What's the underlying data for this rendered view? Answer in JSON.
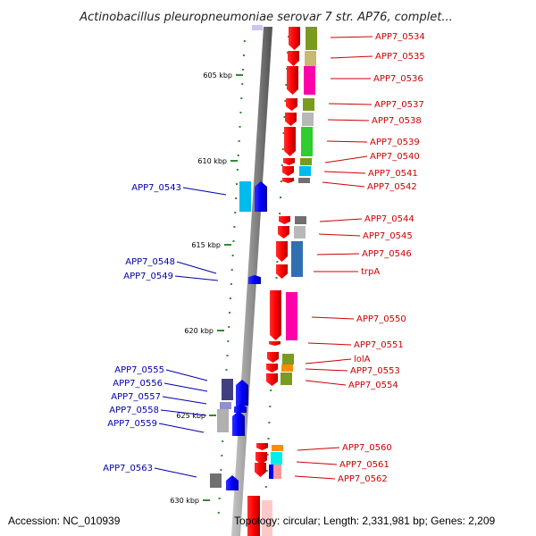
{
  "title": "Actinobacillus pleuropneumoniae serovar 7 str. AP76, complet...",
  "footer": {
    "accession": "Accession: NC_010939",
    "topology": "Topology: circular; Length: 2,331,981 bp; Genes: 2,209"
  },
  "colors": {
    "forward_label": "#cc0000",
    "reverse_label": "#0000aa",
    "tick": "#2e8b2e",
    "axis": "#808080"
  },
  "ruler": [
    {
      "label": "605 kbp"
    },
    {
      "label": "610 kbp"
    },
    {
      "label": "615 kbp"
    },
    {
      "label": "620 kbp"
    },
    {
      "label": "625 kbp"
    },
    {
      "label": "630 kbp"
    }
  ],
  "forward_genes": [
    {
      "label": "APP7_0534"
    },
    {
      "label": "APP7_0535"
    },
    {
      "label": "APP7_0536"
    },
    {
      "label": "APP7_0537"
    },
    {
      "label": "APP7_0538"
    },
    {
      "label": "APP7_0539"
    },
    {
      "label": "APP7_0540"
    },
    {
      "label": "APP7_0541"
    },
    {
      "label": "APP7_0542"
    },
    {
      "label": "APP7_0544"
    },
    {
      "label": "APP7_0545"
    },
    {
      "label": "APP7_0546"
    },
    {
      "label": "trpA"
    },
    {
      "label": "APP7_0550"
    },
    {
      "label": "APP7_0551"
    },
    {
      "label": "lolA"
    },
    {
      "label": "APP7_0553"
    },
    {
      "label": "APP7_0554"
    },
    {
      "label": "APP7_0560"
    },
    {
      "label": "APP7_0561"
    },
    {
      "label": "APP7_0562"
    }
  ],
  "reverse_genes": [
    {
      "label": "APP7_0543"
    },
    {
      "label": "APP7_0548"
    },
    {
      "label": "APP7_0549"
    },
    {
      "label": "APP7_0555"
    },
    {
      "label": "APP7_0556"
    },
    {
      "label": "APP7_0557"
    },
    {
      "label": "APP7_0558"
    },
    {
      "label": "APP7_0559"
    },
    {
      "label": "APP7_0563"
    }
  ]
}
